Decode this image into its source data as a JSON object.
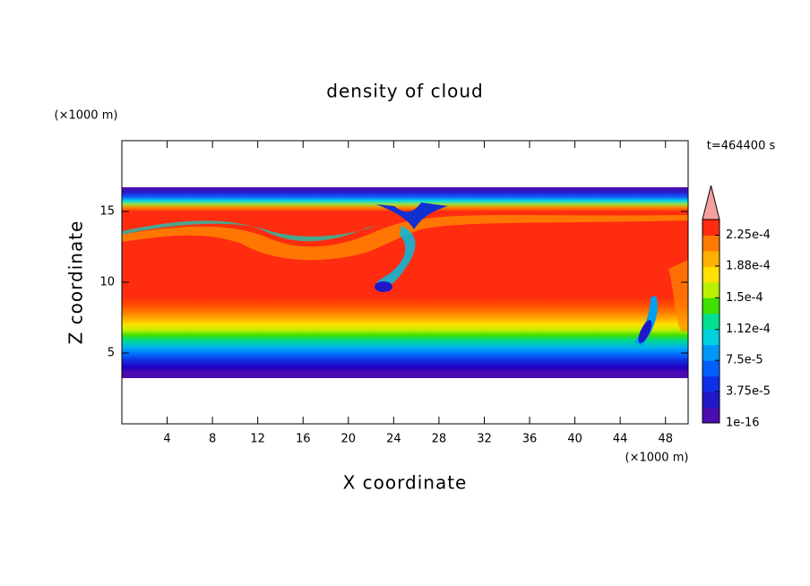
{
  "chart_data": {
    "type": "contour",
    "title": "density of cloud",
    "x_label": "X coordinate",
    "y_label": "Z coordinate",
    "x_unit": "(×1000 m)",
    "y_unit": "(×1000 m)",
    "time_label": "t=464400 s",
    "xlim": [
      0,
      50
    ],
    "xticks": [
      4,
      8,
      12,
      16,
      20,
      24,
      28,
      32,
      36,
      40,
      44,
      48
    ],
    "ylim": [
      0,
      20
    ],
    "yticks": [
      5,
      10,
      15
    ],
    "colorbar": {
      "clim": [
        0,
        0.00024375
      ],
      "colors": [
        "#4b0cb0",
        "#2018c8",
        "#1030e8",
        "#0060ff",
        "#0098f8",
        "#00d0e0",
        "#00e090",
        "#40e000",
        "#b8f000",
        "#ffe000",
        "#ffb000",
        "#ff7a00",
        "#ff2c10"
      ],
      "extend_color": "#f4a0a0",
      "ticks": [
        {
          "value": 1e-16,
          "label": "1e-16"
        },
        {
          "value": 3.75e-05,
          "label": "3.75e-5"
        },
        {
          "value": 7.5e-05,
          "label": "7.5e-5"
        },
        {
          "value": 0.000112,
          "label": "1.12e-4"
        },
        {
          "value": 0.00015,
          "label": "1.5e-4"
        },
        {
          "value": 0.000188,
          "label": "1.88e-4"
        },
        {
          "value": 0.000225,
          "label": "2.25e-4"
        }
      ]
    }
  }
}
